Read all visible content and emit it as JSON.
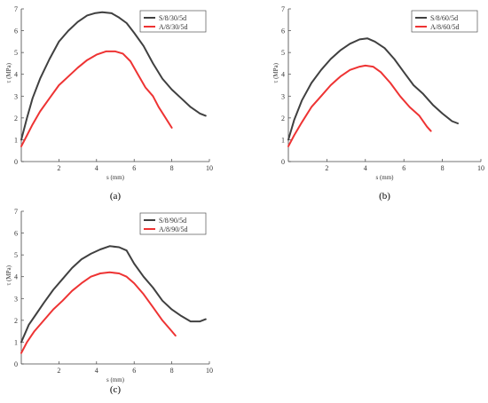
{
  "chart_data": [
    {
      "type": "line",
      "caption": "(a)",
      "xlabel": "s (mm)",
      "ylabel": "τ (MPa)",
      "xlim": [
        0,
        10
      ],
      "ylim": [
        0,
        7
      ],
      "xticks": [
        "2",
        "4",
        "6",
        "8",
        "10"
      ],
      "yticks": [
        "0",
        "1",
        "2",
        "3",
        "4",
        "5",
        "6",
        "7"
      ],
      "legend_position": "top-right",
      "series": [
        {
          "name": "S/8/30/5d",
          "color": "#404040",
          "points": [
            [
              0,
              1.0
            ],
            [
              0.3,
              2.0
            ],
            [
              0.6,
              2.9
            ],
            [
              1.0,
              3.8
            ],
            [
              1.5,
              4.7
            ],
            [
              2.0,
              5.5
            ],
            [
              2.5,
              6.0
            ],
            [
              3.0,
              6.4
            ],
            [
              3.5,
              6.7
            ],
            [
              3.9,
              6.8
            ],
            [
              4.3,
              6.85
            ],
            [
              4.8,
              6.8
            ],
            [
              5.2,
              6.6
            ],
            [
              5.6,
              6.35
            ],
            [
              6.0,
              5.9
            ],
            [
              6.5,
              5.3
            ],
            [
              7.0,
              4.5
            ],
            [
              7.5,
              3.8
            ],
            [
              8.0,
              3.3
            ],
            [
              8.5,
              2.9
            ],
            [
              9.0,
              2.5
            ],
            [
              9.5,
              2.2
            ],
            [
              9.8,
              2.1
            ]
          ]
        },
        {
          "name": "A/8/30/5d",
          "color": "#ee3333",
          "points": [
            [
              0,
              0.7
            ],
            [
              0.3,
              1.2
            ],
            [
              0.6,
              1.7
            ],
            [
              1.0,
              2.3
            ],
            [
              1.5,
              2.9
            ],
            [
              2.0,
              3.5
            ],
            [
              2.5,
              3.9
            ],
            [
              3.0,
              4.3
            ],
            [
              3.5,
              4.65
            ],
            [
              4.0,
              4.9
            ],
            [
              4.5,
              5.05
            ],
            [
              5.0,
              5.05
            ],
            [
              5.4,
              4.95
            ],
            [
              5.8,
              4.6
            ],
            [
              6.2,
              4.0
            ],
            [
              6.6,
              3.4
            ],
            [
              7.0,
              3.0
            ],
            [
              7.3,
              2.5
            ],
            [
              7.6,
              2.1
            ],
            [
              8.0,
              1.55
            ]
          ]
        }
      ]
    },
    {
      "type": "line",
      "caption": "(b)",
      "xlabel": "s (mm)",
      "ylabel": "τ (MPa)",
      "xlim": [
        0,
        10
      ],
      "ylim": [
        0,
        7
      ],
      "xticks": [
        "2",
        "4",
        "6",
        "8",
        "10"
      ],
      "yticks": [
        "0",
        "1",
        "2",
        "3",
        "4",
        "5",
        "6",
        "7"
      ],
      "legend_position": "top-right",
      "series": [
        {
          "name": "S/8/60/5d",
          "color": "#404040",
          "points": [
            [
              0,
              1.0
            ],
            [
              0.3,
              1.9
            ],
            [
              0.7,
              2.8
            ],
            [
              1.2,
              3.6
            ],
            [
              1.7,
              4.2
            ],
            [
              2.2,
              4.7
            ],
            [
              2.7,
              5.1
            ],
            [
              3.2,
              5.4
            ],
            [
              3.7,
              5.6
            ],
            [
              4.1,
              5.65
            ],
            [
              4.5,
              5.5
            ],
            [
              5.0,
              5.2
            ],
            [
              5.5,
              4.7
            ],
            [
              6.0,
              4.1
            ],
            [
              6.5,
              3.5
            ],
            [
              7.0,
              3.1
            ],
            [
              7.5,
              2.6
            ],
            [
              8.0,
              2.2
            ],
            [
              8.5,
              1.85
            ],
            [
              8.8,
              1.75
            ]
          ]
        },
        {
          "name": "A/8/60/5d",
          "color": "#ee3333",
          "points": [
            [
              0,
              0.7
            ],
            [
              0.3,
              1.2
            ],
            [
              0.7,
              1.8
            ],
            [
              1.2,
              2.5
            ],
            [
              1.7,
              3.0
            ],
            [
              2.2,
              3.5
            ],
            [
              2.7,
              3.9
            ],
            [
              3.2,
              4.2
            ],
            [
              3.7,
              4.35
            ],
            [
              4.0,
              4.4
            ],
            [
              4.4,
              4.35
            ],
            [
              4.8,
              4.1
            ],
            [
              5.3,
              3.6
            ],
            [
              5.8,
              3.0
            ],
            [
              6.3,
              2.5
            ],
            [
              6.8,
              2.1
            ],
            [
              7.2,
              1.6
            ],
            [
              7.4,
              1.4
            ]
          ]
        }
      ]
    },
    {
      "type": "line",
      "caption": "(c)",
      "xlabel": "s (mm)",
      "ylabel": "τ (MPa)",
      "xlim": [
        0,
        10
      ],
      "ylim": [
        0,
        7
      ],
      "xticks": [
        "2",
        "4",
        "6",
        "8",
        "10"
      ],
      "yticks": [
        "0",
        "1",
        "2",
        "3",
        "4",
        "5",
        "6",
        "7"
      ],
      "legend_position": "top-right",
      "series": [
        {
          "name": "S/8/90/5d",
          "color": "#404040",
          "points": [
            [
              0,
              1.0
            ],
            [
              0.4,
              1.8
            ],
            [
              0.8,
              2.3
            ],
            [
              1.2,
              2.8
            ],
            [
              1.7,
              3.4
            ],
            [
              2.2,
              3.9
            ],
            [
              2.7,
              4.4
            ],
            [
              3.2,
              4.8
            ],
            [
              3.7,
              5.05
            ],
            [
              4.2,
              5.25
            ],
            [
              4.7,
              5.4
            ],
            [
              5.2,
              5.35
            ],
            [
              5.6,
              5.2
            ],
            [
              6.0,
              4.6
            ],
            [
              6.5,
              4.0
            ],
            [
              7.0,
              3.5
            ],
            [
              7.5,
              2.9
            ],
            [
              8.0,
              2.5
            ],
            [
              8.5,
              2.2
            ],
            [
              9.0,
              1.95
            ],
            [
              9.5,
              1.95
            ],
            [
              9.8,
              2.05
            ]
          ]
        },
        {
          "name": "A/8/90/5d",
          "color": "#ee3333",
          "points": [
            [
              0,
              0.5
            ],
            [
              0.3,
              1.0
            ],
            [
              0.7,
              1.5
            ],
            [
              1.2,
              2.0
            ],
            [
              1.7,
              2.5
            ],
            [
              2.2,
              2.9
            ],
            [
              2.7,
              3.35
            ],
            [
              3.2,
              3.7
            ],
            [
              3.7,
              4.0
            ],
            [
              4.2,
              4.15
            ],
            [
              4.7,
              4.2
            ],
            [
              5.2,
              4.15
            ],
            [
              5.6,
              4.0
            ],
            [
              6.0,
              3.7
            ],
            [
              6.5,
              3.2
            ],
            [
              7.0,
              2.6
            ],
            [
              7.5,
              2.0
            ],
            [
              8.0,
              1.5
            ],
            [
              8.2,
              1.3
            ]
          ]
        }
      ]
    }
  ]
}
